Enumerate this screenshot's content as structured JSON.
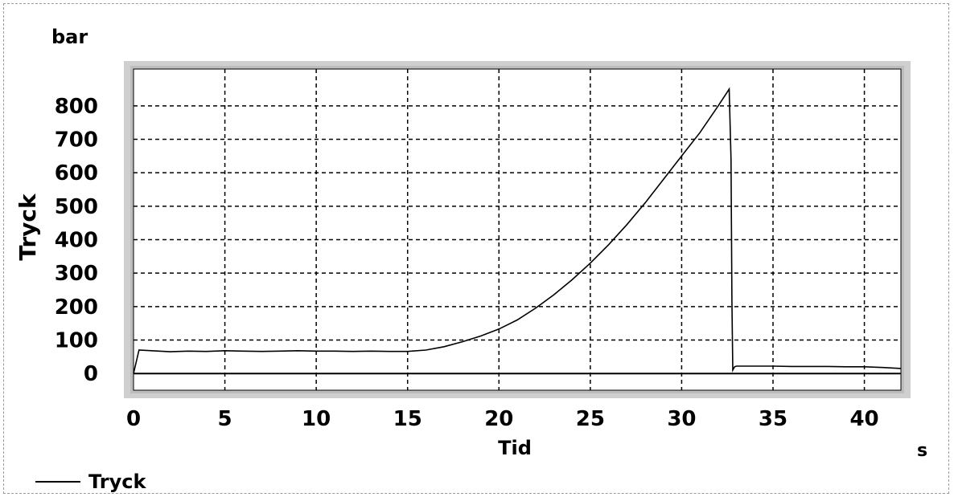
{
  "chart_data": {
    "type": "line",
    "unit_y": "bar",
    "unit_x": "s",
    "xlabel": "Tid",
    "ylabel": "Tryck",
    "xlim": [
      0,
      42
    ],
    "ylim": [
      -50,
      910
    ],
    "x_ticks": [
      0,
      5,
      10,
      15,
      20,
      25,
      30,
      35,
      40
    ],
    "y_ticks": [
      0,
      100,
      200,
      300,
      400,
      500,
      600,
      700,
      800
    ],
    "grid": true,
    "legend": {
      "position": "bottom-left",
      "entries": [
        "Tryck"
      ]
    },
    "series": [
      {
        "name": "Tryck",
        "color": "#000000",
        "x": [
          0,
          0.3,
          1,
          2,
          3,
          4,
          5,
          6,
          7,
          8,
          9,
          10,
          11,
          12,
          13,
          14,
          15,
          16,
          17,
          18,
          19,
          20,
          21,
          22,
          23,
          24,
          25,
          26,
          27,
          28,
          29,
          30,
          31,
          32,
          32.6,
          32.7,
          32.75,
          32.8,
          32.9,
          33,
          34,
          35,
          36,
          37,
          38,
          39,
          40,
          41,
          42
        ],
        "y": [
          0,
          70,
          68,
          65,
          67,
          66,
          68,
          67,
          66,
          67,
          68,
          67,
          67,
          66,
          67,
          66,
          66,
          70,
          80,
          95,
          112,
          133,
          160,
          195,
          235,
          280,
          330,
          385,
          445,
          510,
          580,
          650,
          720,
          800,
          850,
          640,
          220,
          10,
          20,
          22,
          22,
          22,
          21,
          21,
          21,
          20,
          20,
          18,
          15
        ]
      },
      {
        "name": "",
        "color": "#000000",
        "x": [
          0,
          42
        ],
        "y": [
          0,
          0
        ]
      }
    ]
  }
}
